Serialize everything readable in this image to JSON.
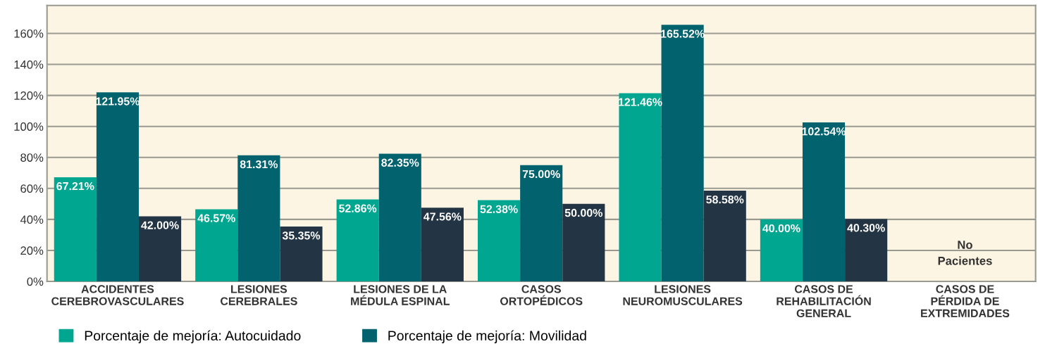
{
  "chart_data": {
    "type": "bar",
    "categories": [
      "ACCIDENTES\nCEREBROVASCULARES",
      "LESIONES\nCEREBRALES",
      "LESIONES DE LA\nMÉDULA ESPINAL",
      "CASOS\nORTOPÉDICOS",
      "LESIONES\nNEUROMUSCULARES",
      "CASOS DE\nREHABILITACIÓN\nGENERAL",
      "CASOS DE\nPÉRDIDA DE\nEXTREMIDADES"
    ],
    "series": [
      {
        "name": "Porcentaje de mejoría: Autocuidado",
        "color": "#00a690",
        "values": [
          67.21,
          46.57,
          52.86,
          52.38,
          121.46,
          40.0,
          null
        ],
        "value_labels": [
          "67.21%",
          "46.57%",
          "52.86%",
          "52.38%",
          "121.46%",
          "40.00%",
          null
        ]
      },
      {
        "name": "Porcentaje de mejoría: Movilidad",
        "color": "#02636e",
        "values": [
          121.95,
          81.31,
          82.35,
          75.0,
          165.52,
          102.54,
          null
        ],
        "value_labels": [
          "121.95%",
          "81.31%",
          "82.35%",
          "75.00%",
          "165.52%",
          "102.54%",
          null
        ]
      },
      {
        "color": "#233545",
        "values": [
          42.0,
          35.35,
          47.56,
          50.0,
          58.58,
          40.3,
          null
        ],
        "value_labels": [
          "42.00%",
          "35.35%",
          "47.56%",
          "50.00%",
          "58.58%",
          "40.30%",
          null
        ]
      }
    ],
    "ylim": [
      0,
      178
    ],
    "yticks": [
      {
        "value": 0,
        "label": "0%"
      },
      {
        "value": 20,
        "label": "20%"
      },
      {
        "value": 40,
        "label": "40%"
      },
      {
        "value": 60,
        "label": "60%"
      },
      {
        "value": 80,
        "label": "80%"
      },
      {
        "value": 100,
        "label": "100%"
      },
      {
        "value": 120,
        "label": "120%"
      },
      {
        "value": 140,
        "label": "140%"
      },
      {
        "value": 160,
        "label": "160%"
      }
    ],
    "grid": "y",
    "legend": "bottom",
    "annotations": [
      "No\nPacientes"
    ]
  }
}
